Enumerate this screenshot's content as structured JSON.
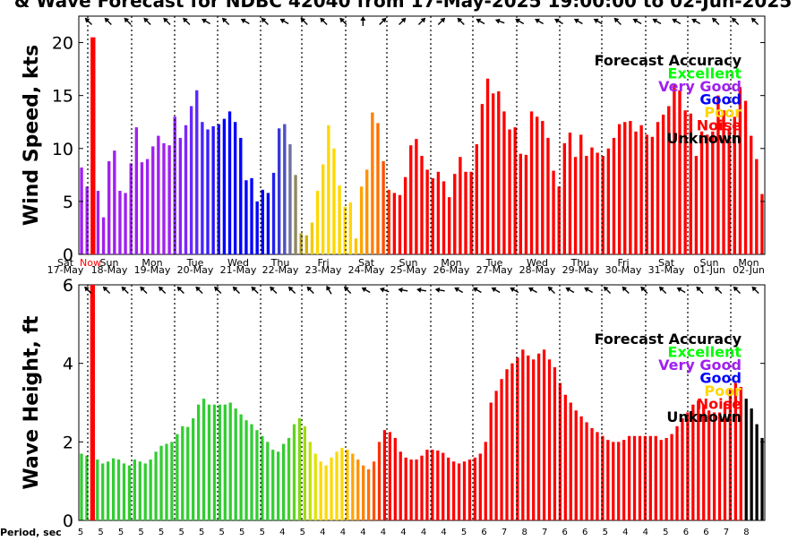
{
  "title": "& Wave Forecast for NDBC 42040 from 17-May-2025 19:00:00 to 02-Jun-2025",
  "chart_data": [
    {
      "type": "bar",
      "ylabel": "Wind Speed, kts",
      "ylim": [
        0,
        22.5
      ],
      "yticks": [
        0,
        5,
        10,
        15,
        20
      ],
      "grid": "vertical dotted at day boundaries",
      "legend_title": "Forecast Accuracy",
      "values": [
        8.2,
        6.4,
        20.5,
        6.0,
        3.5,
        8.8,
        9.8,
        6.0,
        5.8,
        8.6,
        12.0,
        8.7,
        9.0,
        10.2,
        11.2,
        10.5,
        10.3,
        13.0,
        11.0,
        12.2,
        14.0,
        15.5,
        12.5,
        11.8,
        12.1,
        12.3,
        12.8,
        13.5,
        12.5,
        11.0,
        7.0,
        7.2,
        5.0,
        6.1,
        5.8,
        7.7,
        11.9,
        12.3,
        10.4,
        7.5,
        2.0,
        1.8,
        3.0,
        6.0,
        8.5,
        12.2,
        10.0,
        6.5,
        4.5,
        4.9,
        1.5,
        6.4,
        8.0,
        13.4,
        12.4,
        8.8,
        6.1,
        5.8,
        5.6,
        7.3,
        10.3,
        10.9,
        9.3,
        8.0,
        7.2,
        7.8,
        6.9,
        5.4,
        7.6,
        9.2,
        7.8,
        7.8,
        10.4,
        14.2,
        16.6,
        15.2,
        15.4,
        13.5,
        11.8,
        12.0,
        9.5,
        9.4,
        13.5,
        13.0,
        12.6,
        11.0,
        7.9,
        6.4,
        10.5,
        11.5,
        9.2,
        11.3,
        9.3,
        10.1,
        9.6,
        9.3,
        10.0,
        11.0,
        12.3,
        12.5,
        12.6,
        11.6,
        12.2,
        11.3,
        11.1,
        12.5,
        13.2,
        14.0,
        16.0,
        15.5,
        13.6,
        13.3,
        9.3,
        11.6,
        11.3,
        11.6,
        15.0,
        13.6,
        11.8,
        13.0,
        15.8,
        14.5,
        11.2,
        9.0,
        5.7
      ],
      "colors": [
        "#a020f0",
        "#a020f0",
        "#ff0000",
        "#a020f0",
        "#a020f0",
        "#a020f0",
        "#a020f0",
        "#a020f0",
        "#a020f0",
        "#a020f0",
        "#a020f0",
        "#a020f0",
        "#a020f0",
        "#a020f0",
        "#a020f0",
        "#a020f0",
        "#a020f0",
        "#8b23f7",
        "#8b23f7",
        "#7a26fb",
        "#6a28ff",
        "#5a28ff",
        "#4a24ff",
        "#3a1cff",
        "#2a14ff",
        "#1a0cff",
        "#0000ff",
        "#0000ff",
        "#0000ff",
        "#0000ff",
        "#0000ff",
        "#0000ff",
        "#0000ff",
        "#0000ff",
        "#0000ff",
        "#2020ee",
        "#3838d8",
        "#5050c0",
        "#7070a0",
        "#908860",
        "#b09c30",
        "#d0b000",
        "#f0cc00",
        "#ffd700",
        "#ffd700",
        "#ffd700",
        "#ffd700",
        "#ffd700",
        "#ffd700",
        "#ffd700",
        "#ffc000",
        "#ffa500",
        "#ff9000",
        "#ff8000",
        "#ff7000",
        "#ff5000",
        "#ff3000",
        "#ff0000",
        "#ff0000",
        "#ff0000",
        "#ff0000",
        "#ff0000",
        "#ff0000",
        "#ff0000",
        "#ff0000",
        "#ff0000",
        "#ff0000",
        "#ff0000",
        "#ff0000",
        "#ff0000",
        "#ff0000",
        "#ff0000",
        "#ff0000",
        "#ff0000",
        "#ff0000",
        "#ff0000",
        "#ff0000",
        "#ff0000",
        "#ff0000",
        "#ff0000",
        "#ff0000",
        "#ff0000",
        "#ff0000",
        "#ff0000",
        "#ff0000",
        "#ff0000",
        "#ff0000",
        "#ff0000",
        "#ff0000",
        "#ff0000",
        "#ff0000",
        "#ff0000",
        "#ff0000",
        "#ff0000",
        "#ff0000",
        "#ff0000",
        "#ff0000",
        "#ff0000",
        "#ff0000",
        "#ff0000",
        "#ff0000",
        "#ff0000",
        "#ff0000",
        "#ff0000",
        "#ff0000",
        "#ff0000",
        "#ff0000",
        "#ff0000",
        "#ff0000",
        "#ff0000",
        "#ff0000",
        "#ff0000",
        "#ff0000",
        "#ff0000",
        "#ff0000",
        "#ff0000",
        "#ff0000",
        "#ff0000",
        "#ff0000",
        "#ff0000",
        "#ff0000",
        "#ff0000",
        "#ff0000",
        "#ff0000",
        "#ff0000"
      ]
    },
    {
      "type": "bar",
      "ylabel": "Wave Height, ft",
      "ylim": [
        0,
        6
      ],
      "yticks": [
        0,
        2,
        4,
        6
      ],
      "grid": "vertical dotted at day boundaries",
      "legend_title": "Forecast Accuracy",
      "values": [
        1.7,
        1.65,
        6.0,
        1.55,
        1.45,
        1.5,
        1.58,
        1.55,
        1.45,
        1.4,
        1.55,
        1.5,
        1.45,
        1.55,
        1.75,
        1.9,
        1.95,
        2.0,
        2.2,
        2.4,
        2.38,
        2.6,
        2.95,
        3.1,
        2.95,
        2.95,
        2.95,
        2.95,
        3.0,
        2.85,
        2.7,
        2.55,
        2.45,
        2.3,
        2.15,
        2.0,
        1.8,
        1.75,
        1.95,
        2.1,
        2.45,
        2.6,
        2.4,
        2.0,
        1.7,
        1.5,
        1.4,
        1.6,
        1.75,
        1.85,
        1.8,
        1.7,
        1.55,
        1.4,
        1.3,
        1.5,
        2.0,
        2.3,
        2.25,
        2.1,
        1.75,
        1.6,
        1.55,
        1.55,
        1.65,
        1.8,
        1.8,
        1.78,
        1.72,
        1.6,
        1.5,
        1.45,
        1.5,
        1.55,
        1.6,
        1.7,
        2.0,
        3.0,
        3.3,
        3.6,
        3.85,
        4.0,
        4.15,
        4.35,
        4.2,
        4.1,
        4.25,
        4.35,
        4.1,
        3.9,
        3.5,
        3.2,
        3.0,
        2.8,
        2.65,
        2.5,
        2.35,
        2.25,
        2.15,
        2.05,
        2.0,
        2.0,
        2.05,
        2.15,
        2.15,
        2.15,
        2.15,
        2.15,
        2.15,
        2.05,
        2.1,
        2.2,
        2.4,
        2.6,
        2.75,
        2.95,
        3.05,
        2.95,
        2.8,
        2.75,
        2.75,
        3.0,
        3.35,
        3.5,
        3.4,
        3.1,
        2.85,
        2.45,
        2.1
      ],
      "colors": [
        "#32cd32",
        "#32cd32",
        "#ff0000",
        "#32cd32",
        "#32cd32",
        "#32cd32",
        "#32cd32",
        "#32cd32",
        "#32cd32",
        "#32cd32",
        "#32cd32",
        "#32cd32",
        "#32cd32",
        "#32cd32",
        "#32cd32",
        "#32cd32",
        "#32cd32",
        "#32cd32",
        "#32cd32",
        "#32cd32",
        "#32cd32",
        "#32cd32",
        "#32cd32",
        "#32cd32",
        "#32cd32",
        "#32cd32",
        "#32cd32",
        "#32cd32",
        "#32cd32",
        "#32cd32",
        "#32cd32",
        "#32cd32",
        "#32cd32",
        "#32cd32",
        "#32cd32",
        "#32cd32",
        "#32cd32",
        "#32cd32",
        "#32cd32",
        "#40d028",
        "#60d420",
        "#80d818",
        "#a0dc10",
        "#c0e008",
        "#e0e400",
        "#ffd700",
        "#ffd700",
        "#ffd700",
        "#ffd700",
        "#ffd700",
        "#ffc000",
        "#ffa500",
        "#ff9000",
        "#ff8000",
        "#ff7000",
        "#ff5000",
        "#ff3000",
        "#ff0000",
        "#ff0000",
        "#ff0000",
        "#ff0000",
        "#ff0000",
        "#ff0000",
        "#ff0000",
        "#ff0000",
        "#ff0000",
        "#ff0000",
        "#ff0000",
        "#ff0000",
        "#ff0000",
        "#ff0000",
        "#ff0000",
        "#ff0000",
        "#ff0000",
        "#ff0000",
        "#ff0000",
        "#ff0000",
        "#ff0000",
        "#ff0000",
        "#ff0000",
        "#ff0000",
        "#ff0000",
        "#ff0000",
        "#ff0000",
        "#ff0000",
        "#ff0000",
        "#ff0000",
        "#ff0000",
        "#ff0000",
        "#ff0000",
        "#ff0000",
        "#ff0000",
        "#ff0000",
        "#ff0000",
        "#ff0000",
        "#ff0000",
        "#ff0000",
        "#ff0000",
        "#ff0000",
        "#ff0000",
        "#ff0000",
        "#ff0000",
        "#ff0000",
        "#ff0000",
        "#ff0000",
        "#ff0000",
        "#ff0000",
        "#ff0000",
        "#ff0000",
        "#ff0000",
        "#ff0000",
        "#ff0000",
        "#ff0000",
        "#ff0000",
        "#ff0000",
        "#ff0000",
        "#ff0000",
        "#ff0000",
        "#ff0000",
        "#ff0000",
        "#ff0000",
        "#ff0000",
        "#ff0000",
        "#ff0000",
        "#ff0000"
      ]
    }
  ],
  "legend": [
    {
      "label": "Forecast Accuracy",
      "color": "#000000"
    },
    {
      "label": "Excellent",
      "color": "#00ff00"
    },
    {
      "label": "Very Good",
      "color": "#a020f0"
    },
    {
      "label": "Good",
      "color": "#0000ff"
    },
    {
      "label": "Poor",
      "color": "#ffd700"
    },
    {
      "label": "Noise",
      "color": "#ff0000"
    },
    {
      "label": "Unknown",
      "color": "#000000"
    }
  ],
  "days": [
    {
      "dow": "Sat",
      "date": "17-May"
    },
    {
      "dow": "Sun",
      "date": "18-May"
    },
    {
      "dow": "Mon",
      "date": "19-May"
    },
    {
      "dow": "Tue",
      "date": "20-May"
    },
    {
      "dow": "Wed",
      "date": "21-May"
    },
    {
      "dow": "Thu",
      "date": "22-May"
    },
    {
      "dow": "Fri",
      "date": "23-May"
    },
    {
      "dow": "Sat",
      "date": "24-May"
    },
    {
      "dow": "Sun",
      "date": "25-May"
    },
    {
      "dow": "Mon",
      "date": "26-May"
    },
    {
      "dow": "Tue",
      "date": "27-May"
    },
    {
      "dow": "Wed",
      "date": "28-May"
    },
    {
      "dow": "Thu",
      "date": "29-May"
    },
    {
      "dow": "Fri",
      "date": "30-May"
    },
    {
      "dow": "Sat",
      "date": "31-May"
    },
    {
      "dow": "Sun",
      "date": "01-Jun"
    },
    {
      "dow": "Mon",
      "date": "02-Jun"
    }
  ],
  "now_label": "Now",
  "period_label": "Period, sec",
  "periods": [
    "5",
    "5",
    "5",
    "5",
    "5",
    "5",
    "5",
    "5",
    "5",
    "5",
    "4",
    "5",
    "4",
    "4",
    "4",
    "4",
    "4",
    "4",
    "4",
    "5",
    "6",
    "7",
    "8",
    "7",
    "6",
    "6",
    "5",
    "4",
    "4",
    "5",
    "6",
    "6",
    "7",
    "8"
  ],
  "wind_arrows": [
    315,
    315,
    315,
    315,
    315,
    315,
    300,
    315,
    300,
    315,
    300,
    315,
    315,
    315,
    0,
    45,
    45,
    45,
    45,
    315,
    300,
    290,
    300,
    300,
    300,
    300,
    300,
    315,
    300,
    300,
    300,
    300,
    315,
    315,
    315
  ],
  "wave_arrows": [
    315,
    315,
    315,
    315,
    315,
    315,
    315,
    315,
    315,
    315,
    315,
    315,
    315,
    330,
    315,
    300,
    290,
    280,
    280,
    280,
    300,
    300,
    300,
    300,
    300,
    315,
    300,
    300,
    315,
    315,
    315,
    315,
    300,
    315,
    315,
    315,
    315
  ]
}
